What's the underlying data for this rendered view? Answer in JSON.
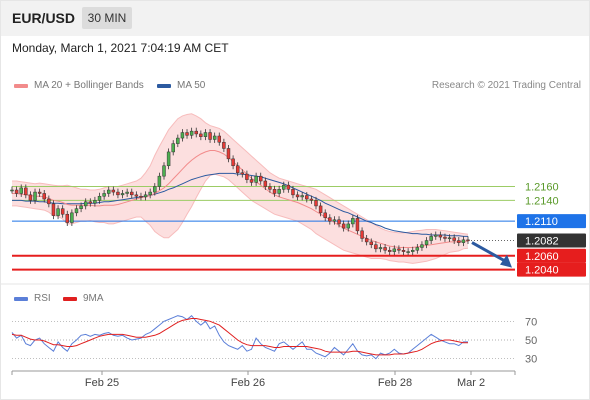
{
  "header": {
    "symbol": "EUR/USD",
    "timeframe": "30 MIN"
  },
  "datetime": "Monday, March 1, 2021 7:04:19 AM CET",
  "legend": {
    "ma20": {
      "label": "MA 20 + Bollinger Bands",
      "color": "#f28b8b"
    },
    "ma50": {
      "label": "MA 50",
      "color": "#2c5aa0"
    },
    "rsi": {
      "label": "RSI",
      "color": "#5b7fd8"
    },
    "rsi_ma": {
      "label": "9MA",
      "color": "#e02020"
    }
  },
  "credit": "Research © 2021 Trading Central",
  "chart_data": [
    {
      "type": "line",
      "ylim": [
        1.2025,
        1.2285
      ],
      "x_tick_labels": [
        "Feb 25",
        "Feb 26",
        "Feb 28",
        "Mar 2"
      ],
      "price_close": [
        1.2155,
        1.215,
        1.2158,
        1.2148,
        1.214,
        1.2152,
        1.215,
        1.2142,
        1.2135,
        1.2118,
        1.2128,
        1.212,
        1.2108,
        1.2122,
        1.2128,
        1.2132,
        1.2138,
        1.2136,
        1.214,
        1.2146,
        1.215,
        1.2155,
        1.2152,
        1.2148,
        1.215,
        1.2152,
        1.2148,
        1.2146,
        1.2145,
        1.2148,
        1.2152,
        1.216,
        1.2175,
        1.219,
        1.221,
        1.2222,
        1.223,
        1.2238,
        1.2234,
        1.224,
        1.2236,
        1.2232,
        1.2238,
        1.2228,
        1.2233,
        1.2224,
        1.2215,
        1.22,
        1.219,
        1.218,
        1.2178,
        1.217,
        1.2166,
        1.2175,
        1.2168,
        1.216,
        1.2156,
        1.215,
        1.2156,
        1.2162,
        1.2156,
        1.2148,
        1.2145,
        1.2147,
        1.2142,
        1.214,
        1.2132,
        1.2122,
        1.2115,
        1.211,
        1.2112,
        1.2106,
        1.21,
        1.2106,
        1.2114,
        1.2096,
        1.2085,
        1.208,
        1.2076,
        1.207,
        1.2072,
        1.2068,
        1.2066,
        1.207,
        1.2068,
        1.2066,
        1.2066,
        1.2068,
        1.2072,
        1.2076,
        1.2082,
        1.2088,
        1.209,
        1.2087,
        1.2085,
        1.2086,
        1.2082,
        1.2079,
        1.2083,
        1.2082
      ],
      "ma20": [
        1.215,
        1.215,
        1.2149,
        1.2148,
        1.2147,
        1.2146,
        1.2146,
        1.2145,
        1.2143,
        1.214,
        1.2139,
        1.2137,
        1.2134,
        1.2133,
        1.2133,
        1.2133,
        1.2133,
        1.2133,
        1.2132,
        1.2132,
        1.2133,
        1.2133,
        1.2133,
        1.2134,
        1.2136,
        1.2138,
        1.214,
        1.2142,
        1.2144,
        1.2145,
        1.2147,
        1.215,
        1.2154,
        1.2158,
        1.2164,
        1.2171,
        1.2178,
        1.2185,
        1.2192,
        1.2198,
        1.2203,
        1.2207,
        1.221,
        1.2212,
        1.2212,
        1.221,
        1.2207,
        1.2202,
        1.2196,
        1.219,
        1.2184,
        1.2178,
        1.2172,
        1.2167,
        1.2162,
        1.2157,
        1.2152,
        1.2148,
        1.2145,
        1.2143,
        1.2141,
        1.2139,
        1.2137,
        1.2134,
        1.2131,
        1.2128,
        1.2124,
        1.212,
        1.2116,
        1.2112,
        1.2108,
        1.2104,
        1.21,
        1.2097,
        1.2094,
        1.2091,
        1.2088,
        1.2085,
        1.2082,
        1.208,
        1.2078,
        1.2076,
        1.2074,
        1.2073,
        1.2072,
        1.2072,
        1.2072,
        1.2072,
        1.2073,
        1.2074,
        1.2075,
        1.2076,
        1.2077,
        1.2078,
        1.2079,
        1.208,
        1.208,
        1.208,
        1.2081,
        1.2081
      ],
      "bollinger_upper": [
        1.2168,
        1.2168,
        1.2167,
        1.2166,
        1.2165,
        1.2164,
        1.2165,
        1.2164,
        1.2163,
        1.2162,
        1.2161,
        1.2161,
        1.2162,
        1.216,
        1.2158,
        1.2156,
        1.2156,
        1.2155,
        1.2155,
        1.2156,
        1.2158,
        1.216,
        1.216,
        1.216,
        1.2162,
        1.2164,
        1.2166,
        1.2168,
        1.2172,
        1.218,
        1.219,
        1.2205,
        1.2218,
        1.223,
        1.2242,
        1.225,
        1.2258,
        1.2262,
        1.2264,
        1.2265,
        1.2262,
        1.2258,
        1.2252,
        1.2248,
        1.2246,
        1.2244,
        1.224,
        1.2234,
        1.2228,
        1.2222,
        1.2216,
        1.221,
        1.2204,
        1.2198,
        1.2192,
        1.2186,
        1.218,
        1.2176,
        1.2172,
        1.217,
        1.2168,
        1.2166,
        1.2164,
        1.2162,
        1.216,
        1.2158,
        1.2156,
        1.2152,
        1.2148,
        1.2144,
        1.214,
        1.2136,
        1.2132,
        1.2128,
        1.2124,
        1.212,
        1.2116,
        1.2112,
        1.2108,
        1.2104,
        1.21,
        1.2097,
        1.2095,
        1.2094,
        1.2093,
        1.2093,
        1.2094,
        1.2095,
        1.2096,
        1.2097,
        1.2098,
        1.2098,
        1.2098,
        1.2097,
        1.2096,
        1.2095,
        1.2094,
        1.2093,
        1.2092,
        1.2091
      ],
      "bollinger_lower": [
        1.2132,
        1.2132,
        1.2131,
        1.213,
        1.2129,
        1.2128,
        1.2127,
        1.2126,
        1.2123,
        1.2118,
        1.2117,
        1.2113,
        1.2106,
        1.2106,
        1.2108,
        1.211,
        1.211,
        1.2111,
        1.2109,
        1.2108,
        1.2108,
        1.2106,
        1.2106,
        1.2108,
        1.211,
        1.2112,
        1.2114,
        1.2116,
        1.2116,
        1.211,
        1.2104,
        1.2095,
        1.209,
        1.2086,
        1.2086,
        1.2092,
        1.2098,
        1.2108,
        1.212,
        1.2131,
        1.2144,
        1.2156,
        1.2168,
        1.2176,
        1.2178,
        1.2176,
        1.2174,
        1.217,
        1.2164,
        1.2158,
        1.2152,
        1.2146,
        1.214,
        1.2136,
        1.2132,
        1.2128,
        1.2124,
        1.212,
        1.2118,
        1.2116,
        1.2114,
        1.2112,
        1.211,
        1.2106,
        1.2102,
        1.2098,
        1.2092,
        1.2088,
        1.2084,
        1.208,
        1.2076,
        1.2072,
        1.2068,
        1.2066,
        1.2064,
        1.2062,
        1.206,
        1.2058,
        1.2056,
        1.2056,
        1.2056,
        1.2055,
        1.2053,
        1.2052,
        1.2051,
        1.2051,
        1.205,
        1.2049,
        1.205,
        1.2051,
        1.2052,
        1.2054,
        1.2056,
        1.2059,
        1.2062,
        1.2065,
        1.2066,
        1.2067,
        1.207,
        1.2071
      ],
      "ma50": [
        1.214,
        1.214,
        1.214,
        1.2139,
        1.2139,
        1.2139,
        1.2138,
        1.2138,
        1.2137,
        1.2136,
        1.2136,
        1.2135,
        1.2135,
        1.2135,
        1.2135,
        1.2135,
        1.2136,
        1.2136,
        1.2136,
        1.2137,
        1.2138,
        1.2138,
        1.2139,
        1.214,
        1.2141,
        1.2142,
        1.2143,
        1.2144,
        1.2145,
        1.2146,
        1.2147,
        1.2149,
        1.2151,
        1.2153,
        1.2156,
        1.2158,
        1.2161,
        1.2164,
        1.2167,
        1.217,
        1.2172,
        1.2174,
        1.2176,
        1.2177,
        1.2178,
        1.2179,
        1.2179,
        1.2179,
        1.2179,
        1.2178,
        1.2178,
        1.2177,
        1.2176,
        1.2175,
        1.2174,
        1.2172,
        1.217,
        1.2168,
        1.2166,
        1.2164,
        1.2161,
        1.2158,
        1.2155,
        1.2152,
        1.2149,
        1.2146,
        1.2143,
        1.214,
        1.2136,
        1.2133,
        1.213,
        1.2127,
        1.2124,
        1.2122,
        1.2119,
        1.2116,
        1.2113,
        1.211,
        1.2108,
        1.2105,
        1.2103,
        1.21,
        1.2098,
        1.2096,
        1.2095,
        1.2094,
        1.2093,
        1.2092,
        1.2092,
        1.2091,
        1.2091,
        1.209,
        1.209,
        1.209,
        1.209,
        1.2089,
        1.2089,
        1.2089,
        1.2088,
        1.2088
      ],
      "levels": [
        {
          "value": 1.216,
          "label": "1.2160",
          "type": "resistance",
          "color": "#9ccc65"
        },
        {
          "value": 1.214,
          "label": "1.2140",
          "type": "resistance",
          "color": "#9ccc65"
        },
        {
          "value": 1.211,
          "label": "1.2110",
          "type": "pivot",
          "color": "#1e73e8"
        },
        {
          "value": 1.2082,
          "label": "1.2082",
          "type": "last",
          "color": "#333333"
        },
        {
          "value": 1.206,
          "label": "1.2060",
          "type": "support",
          "color": "#e61e1e"
        },
        {
          "value": 1.204,
          "label": "1.2040",
          "type": "support",
          "color": "#e61e1e"
        }
      ],
      "projection_target": 1.204
    },
    {
      "type": "line",
      "ylim": [
        20,
        80
      ],
      "y_ticks": [
        70,
        50,
        30
      ],
      "rsi": [
        58,
        52,
        55,
        46,
        44,
        50,
        52,
        46,
        42,
        38,
        48,
        42,
        38,
        46,
        50,
        55,
        56,
        54,
        56,
        55,
        57,
        58,
        55,
        54,
        55,
        52,
        50,
        51,
        52,
        56,
        58,
        62,
        66,
        70,
        72,
        74,
        76,
        75,
        72,
        76,
        70,
        66,
        70,
        62,
        65,
        55,
        48,
        44,
        42,
        40,
        44,
        38,
        40,
        52,
        46,
        42,
        40,
        38,
        46,
        48,
        44,
        40,
        44,
        48,
        40,
        40,
        36,
        34,
        32,
        36,
        42,
        38,
        34,
        40,
        46,
        38,
        34,
        33,
        34,
        30,
        36,
        34,
        36,
        40,
        36,
        35,
        36,
        40,
        44,
        48,
        52,
        56,
        53,
        50,
        48,
        46,
        46,
        44,
        48,
        48
      ],
      "rsi_ma": [
        56,
        55,
        55,
        53,
        51,
        50,
        50,
        49,
        47,
        45,
        45,
        44,
        43,
        43,
        44,
        46,
        48,
        50,
        52,
        54,
        55,
        56,
        56,
        56,
        56,
        55,
        54,
        53,
        53,
        53,
        54,
        55,
        57,
        60,
        63,
        66,
        69,
        71,
        72,
        73,
        73,
        72,
        71,
        70,
        68,
        66,
        62,
        58,
        54,
        50,
        47,
        45,
        44,
        44,
        44,
        44,
        43,
        42,
        42,
        43,
        43,
        43,
        43,
        43,
        43,
        42,
        41,
        40,
        38,
        37,
        37,
        37,
        37,
        37,
        38,
        38,
        37,
        36,
        35,
        34,
        34,
        34,
        34,
        35,
        35,
        35,
        36,
        37,
        38,
        40,
        43,
        46,
        48,
        49,
        50,
        50,
        49,
        48,
        47,
        47
      ]
    }
  ]
}
